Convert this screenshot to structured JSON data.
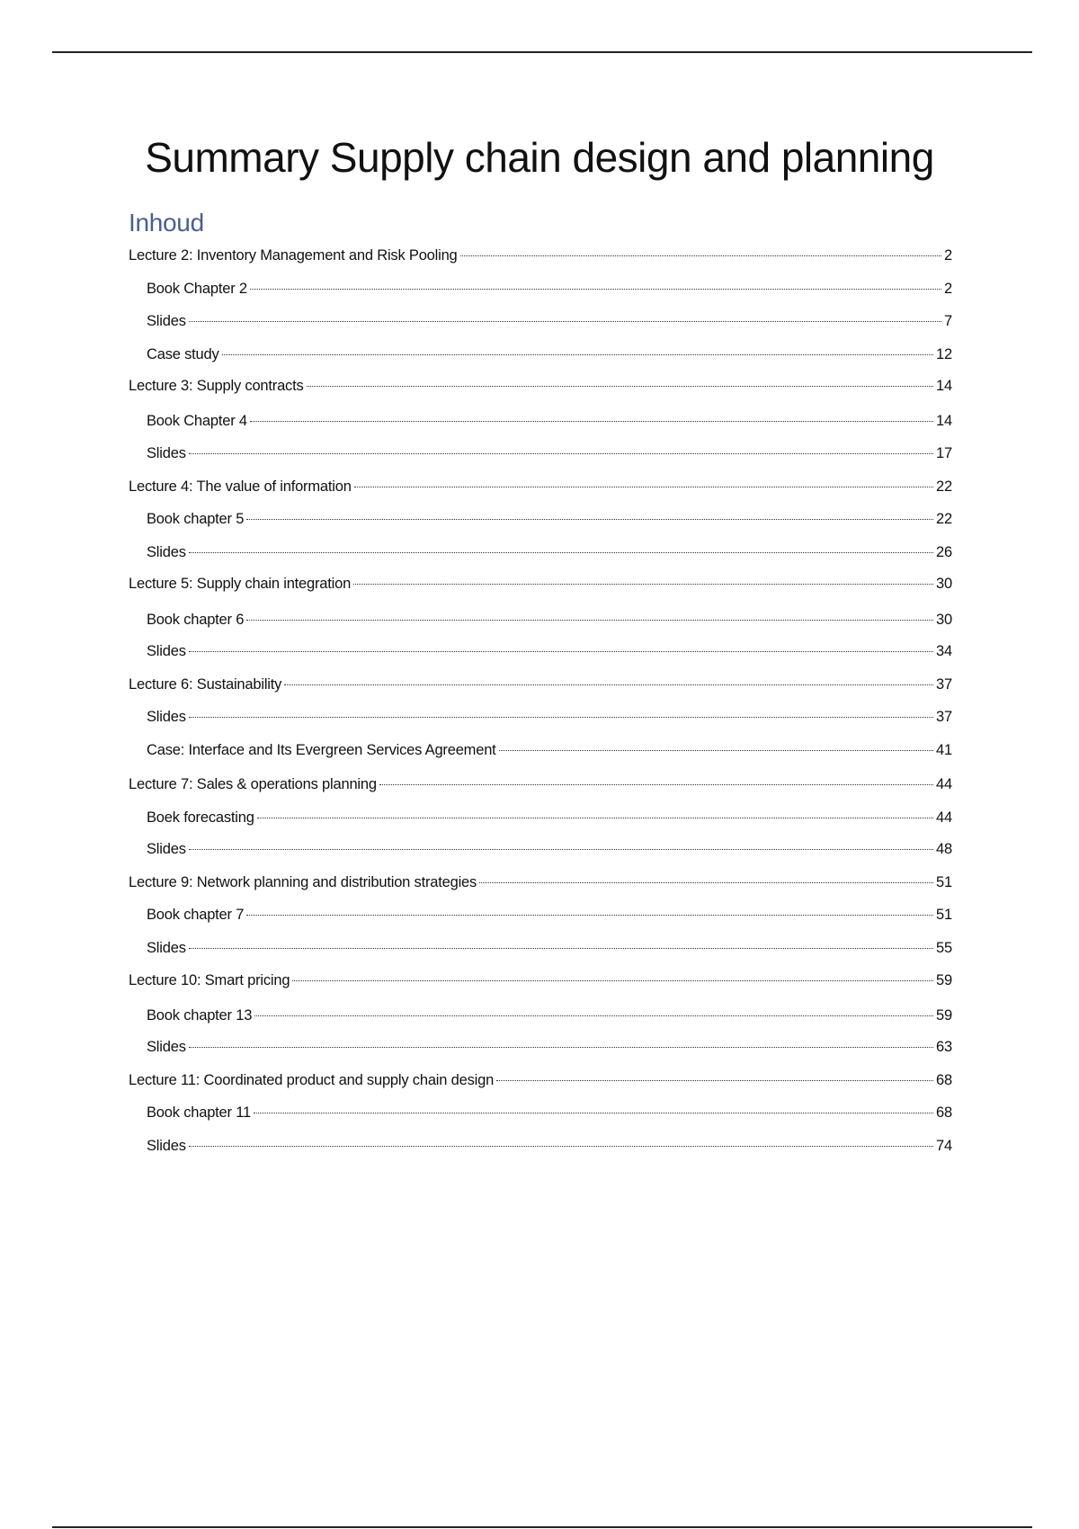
{
  "document": {
    "title": "Summary Supply chain design and planning",
    "toc_heading": "Inhoud",
    "toc": [
      {
        "label": "Lecture 2: Inventory Management and Risk Pooling",
        "page": "2",
        "level": 1
      },
      {
        "label": "Book Chapter 2",
        "page": "2",
        "level": 2
      },
      {
        "label": "Slides",
        "page": "7",
        "level": 2
      },
      {
        "label": "Case study",
        "page": "12",
        "level": 2
      },
      {
        "label": "Lecture 3: Supply contracts",
        "page": "14",
        "level": 1
      },
      {
        "label": "Book Chapter 4",
        "page": "14",
        "level": 2
      },
      {
        "label": "Slides",
        "page": "17",
        "level": 2
      },
      {
        "label": "Lecture 4: The value of information",
        "page": "22",
        "level": 1
      },
      {
        "label": "Book chapter 5",
        "page": "22",
        "level": 2
      },
      {
        "label": "Slides",
        "page": "26",
        "level": 2
      },
      {
        "label": "Lecture 5: Supply chain integration",
        "page": "30",
        "level": 1
      },
      {
        "label": "Book chapter 6",
        "page": "30",
        "level": 2
      },
      {
        "label": "Slides",
        "page": "34",
        "level": 2
      },
      {
        "label": "Lecture 6: Sustainability",
        "page": "37",
        "level": 1
      },
      {
        "label": "Slides",
        "page": "37",
        "level": 2
      },
      {
        "label": "Case: Interface and Its Evergreen Services Agreement",
        "page": "41",
        "level": 2
      },
      {
        "label": "Lecture 7: Sales & operations planning",
        "page": "44",
        "level": 1
      },
      {
        "label": "Boek forecasting",
        "page": "44",
        "level": 2
      },
      {
        "label": "Slides",
        "page": "48",
        "level": 2
      },
      {
        "label": "Lecture 9: Network planning and distribution strategies",
        "page": "51",
        "level": 1
      },
      {
        "label": "Book chapter 7",
        "page": "51",
        "level": 2
      },
      {
        "label": "Slides",
        "page": "55",
        "level": 2
      },
      {
        "label": "Lecture 10: Smart pricing",
        "page": "59",
        "level": 1
      },
      {
        "label": "Book chapter 13",
        "page": "59",
        "level": 2
      },
      {
        "label": "Slides",
        "page": "63",
        "level": 2
      },
      {
        "label": "Lecture 11: Coordinated product and supply chain design",
        "page": "68",
        "level": 1
      },
      {
        "label": "Book chapter 11",
        "page": "68",
        "level": 2
      },
      {
        "label": "Slides",
        "page": "74",
        "level": 2
      }
    ]
  },
  "colors": {
    "heading": "#4a5f8f",
    "text": "#111111"
  }
}
